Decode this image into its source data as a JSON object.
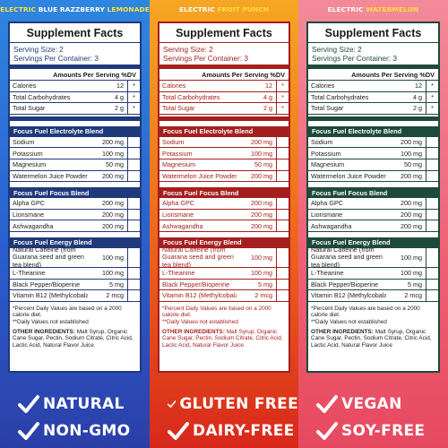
{
  "panels": [
    {
      "flavor": [
        "ELECTRIC",
        " BLUE RAZZBERRY",
        " LEMONADE"
      ],
      "title": "Supplement Facts",
      "serving_size": "Serving Size: 2",
      "servings_per_container": "Servings Per Container: 3",
      "amounts_header": "Amounts Per Serving %DV",
      "macros": [
        {
          "name": "Calories",
          "value": "12",
          "dv": "*"
        },
        {
          "name": "Total Carbohydrates",
          "value": "4 g",
          "dv": "*"
        },
        {
          "name": "Total Sugar",
          "value": "2 g",
          "dv": "*"
        }
      ],
      "blend1_title": "Focus Fuel Electrolyte Blend",
      "blend1": [
        {
          "name": "Sodium",
          "value": "200 mg"
        },
        {
          "name": "Potassium",
          "value": "100 mg"
        },
        {
          "name": "Magnesium",
          "value": "50 mg"
        },
        {
          "name": "Watermelon Juice Powder",
          "value": "200 mg"
        }
      ],
      "blend2_title": "Focus Fuel Focus Blend",
      "blend2": [
        {
          "name": "Alpha GPC",
          "value": "200 mg"
        },
        {
          "name": "Lionsmane",
          "value": "200 mg"
        },
        {
          "name": "Ashwagandha",
          "value": "200 mg"
        }
      ],
      "blend3_title": "Focus Fuel Energy Blend",
      "blend3": [
        {
          "name": "Natural Caffeine (from Guarana seed and green tea blend)",
          "value": "100 mg"
        },
        {
          "name": "L-Theanine",
          "value": "100 mg"
        },
        {
          "name": "Black Pepper/Bioperine",
          "value": "5 mg"
        },
        {
          "name": "Vitamin B12 (Methylcobalamin)",
          "value": "2 mcg"
        }
      ],
      "footnote1": "*Percent Daily Values are based on a 2000 calorie diet.",
      "footnote2": "**Daily Values not established",
      "other_label": "OTHER INGREDIENTS:",
      "other_text": " Malt Syrup, Organic Cane Sugar, Pectin, Sodium Citrate, Citric Acid, Lactic Acid, Natural Flavor Juice",
      "claims": [
        "NATURAL",
        "NON-GMO"
      ]
    },
    {
      "flavor": [
        "ELECTRIC",
        " FRUIT PUNCH",
        ""
      ],
      "title": "Supplement Facts",
      "serving_size": "Serving Size: 2",
      "servings_per_container": "Servings Per Container: 3",
      "amounts_header": "Amounts Per Serving %DV",
      "macros": [
        {
          "name": "Calories",
          "value": "12",
          "dv": "*"
        },
        {
          "name": "Total Carbohydrates",
          "value": "4 g",
          "dv": "*"
        },
        {
          "name": "Total Sugar",
          "value": "2 g",
          "dv": "*"
        }
      ],
      "blend1_title": "Focus Fuel Electrolyte Blend",
      "blend1": [
        {
          "name": "Sodium",
          "value": "200 mg"
        },
        {
          "name": "Potassium",
          "value": "100 mg"
        },
        {
          "name": "Magnesium",
          "value": "50 mg"
        },
        {
          "name": "Watermelon Juice Powder",
          "value": "200 mg"
        }
      ],
      "blend2_title": "Focus Fuel Focus Blend",
      "blend2": [
        {
          "name": "Alpha GPC",
          "value": "200 mg"
        },
        {
          "name": "Lionsmane",
          "value": "200 mg"
        },
        {
          "name": "Ashwagandha",
          "value": "200 mg"
        }
      ],
      "blend3_title": "Focus Fuel Energy Blend",
      "blend3": [
        {
          "name": "Natural Caffeine (from Guarana seed and green tea blend)",
          "value": "100 mg"
        },
        {
          "name": "L-Theanine",
          "value": "100 mg"
        },
        {
          "name": "Black Pepper/Bioperine",
          "value": "5 mg"
        },
        {
          "name": "Vitamin B12 (Methylcobalamin)",
          "value": "2 mcg"
        }
      ],
      "footnote1": "*Percent Daily Values are based on a 2000 calorie diet.",
      "footnote2": "**Daily Values not established",
      "other_label": "OTHER INGREDIENTS:",
      "other_text": " Malt Syrup, Organic Cane Sugar, Pectin, Sodium Citrate, Citric Acid, Lactic Acid, Natural Flavor Juice",
      "claims": [
        "GLUTEN FREE",
        "DAIRY-FREE"
      ]
    },
    {
      "flavor": [
        "ELECTRIC",
        " WATERMELON",
        ""
      ],
      "title": "Supplement Facts",
      "serving_size": "Serving Size: 2",
      "servings_per_container": "Servings Per Container: 3",
      "amounts_header": "Amounts Per Serving %DV",
      "macros": [
        {
          "name": "Calories",
          "value": "12",
          "dv": "*"
        },
        {
          "name": "Total Carbohydrates",
          "value": "4 g",
          "dv": "*"
        },
        {
          "name": "Total Sugar",
          "value": "2 g",
          "dv": "*"
        }
      ],
      "blend1_title": "Focus Fuel Electrolyte Blend",
      "blend1": [
        {
          "name": "Sodium",
          "value": "200 mg"
        },
        {
          "name": "Potassium",
          "value": "100 mg"
        },
        {
          "name": "Magnesium",
          "value": "50 mg"
        },
        {
          "name": "Watermelon Juice Powder",
          "value": "200 mg"
        }
      ],
      "blend2_title": "Focus Fuel Focus Blend",
      "blend2": [
        {
          "name": "Alpha GPC",
          "value": "200 mg"
        },
        {
          "name": "Lionsmane",
          "value": "200 mg"
        },
        {
          "name": "Ashwagandha",
          "value": "200 mg"
        }
      ],
      "blend3_title": "Focus Fuel Energy Blend",
      "blend3": [
        {
          "name": "Natural Caffeine (from Guarana seed and green tea blend)",
          "value": "100 mg"
        },
        {
          "name": "L-Theanine",
          "value": "100 mg"
        },
        {
          "name": "Black Pepper/Bioperine",
          "value": "5 mg"
        },
        {
          "name": "Vitamin B12 (Methylcobalamin)",
          "value": "2 mcg"
        }
      ],
      "footnote1": "*Percent Daily Values are based on a 2000 calorie diet.",
      "footnote2": "**Daily Values not established",
      "other_label": "OTHER INGREDIENTS:",
      "other_text": " Malt Syrup, Organic Cane Sugar, Pectin, Sodium Citrate, Citric Acid, Lactic Acid, Natural Flavor Juice",
      "claims": [
        "VEGAN",
        "SOY-FREE"
      ]
    }
  ],
  "colors": {
    "blue_label": "#1f3a7a",
    "red_label": "#a51f1f",
    "green_label": "#1d4a3c",
    "accent_yellow": "#ffe23a",
    "check_icon": "check-icon"
  }
}
